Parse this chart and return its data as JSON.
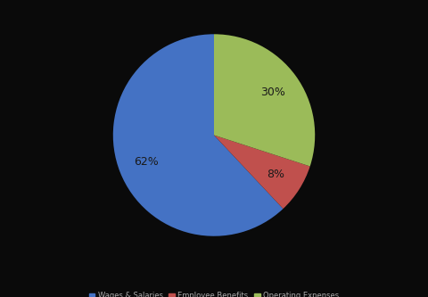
{
  "labels": [
    "Wages & Salaries",
    "Employee Benefits",
    "Operating Expenses"
  ],
  "values": [
    62,
    8,
    30
  ],
  "colors": [
    "#4472C4",
    "#C0504D",
    "#9BBB59"
  ],
  "background_color": "#0a0a0a",
  "pct_color": "#1a1a1a",
  "legend_fontsize": 6,
  "label_fontsize": 9,
  "startangle": 90,
  "pctdistance": 0.72
}
